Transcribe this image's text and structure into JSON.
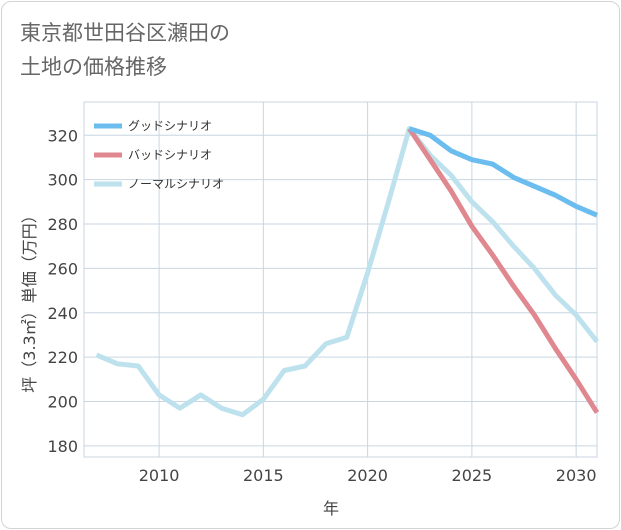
{
  "title": {
    "line1": "東京都世田谷区瀬田の",
    "line2": "土地の価格推移"
  },
  "chart_data": {
    "type": "line",
    "title": "東京都世田谷区瀬田の土地の価格推移",
    "xlabel": "年",
    "ylabel": "坪（3.3㎡）単価（万円）",
    "xlim": [
      2006.4,
      2031
    ],
    "ylim": [
      175,
      335
    ],
    "xticks": [
      2010,
      2015,
      2020,
      2025,
      2030
    ],
    "yticks": [
      180,
      200,
      220,
      240,
      260,
      280,
      300,
      320
    ],
    "grid": true,
    "legend_position": "top-left",
    "series": [
      {
        "name": "グッドシナリオ",
        "color": "#6bbcef",
        "x": [
          2022,
          2023,
          2024,
          2025,
          2026,
          2027,
          2028,
          2029,
          2030,
          2031
        ],
        "y": [
          323,
          320,
          313,
          309,
          307,
          301,
          297,
          293,
          288,
          284
        ]
      },
      {
        "name": "バッドシナリオ",
        "color": "#e0888f",
        "x": [
          2022,
          2023,
          2024,
          2025,
          2026,
          2027,
          2028,
          2029,
          2030,
          2031
        ],
        "y": [
          323,
          309,
          295,
          279,
          266,
          252,
          239,
          224,
          210,
          195
        ]
      },
      {
        "name": "ノーマルシナリオ",
        "color": "#bde2ee",
        "x": [
          2007,
          2008,
          2009,
          2010,
          2011,
          2012,
          2013,
          2014,
          2015,
          2016,
          2017,
          2018,
          2019,
          2020,
          2021,
          2022,
          2023,
          2024,
          2025,
          2026,
          2027,
          2028,
          2029,
          2030,
          2031
        ],
        "y": [
          221,
          217,
          216,
          203,
          197,
          203,
          197,
          194,
          201,
          214,
          216,
          226,
          229,
          258,
          290,
          323,
          311,
          302,
          290,
          281,
          270,
          260,
          248,
          239,
          227
        ]
      }
    ]
  }
}
